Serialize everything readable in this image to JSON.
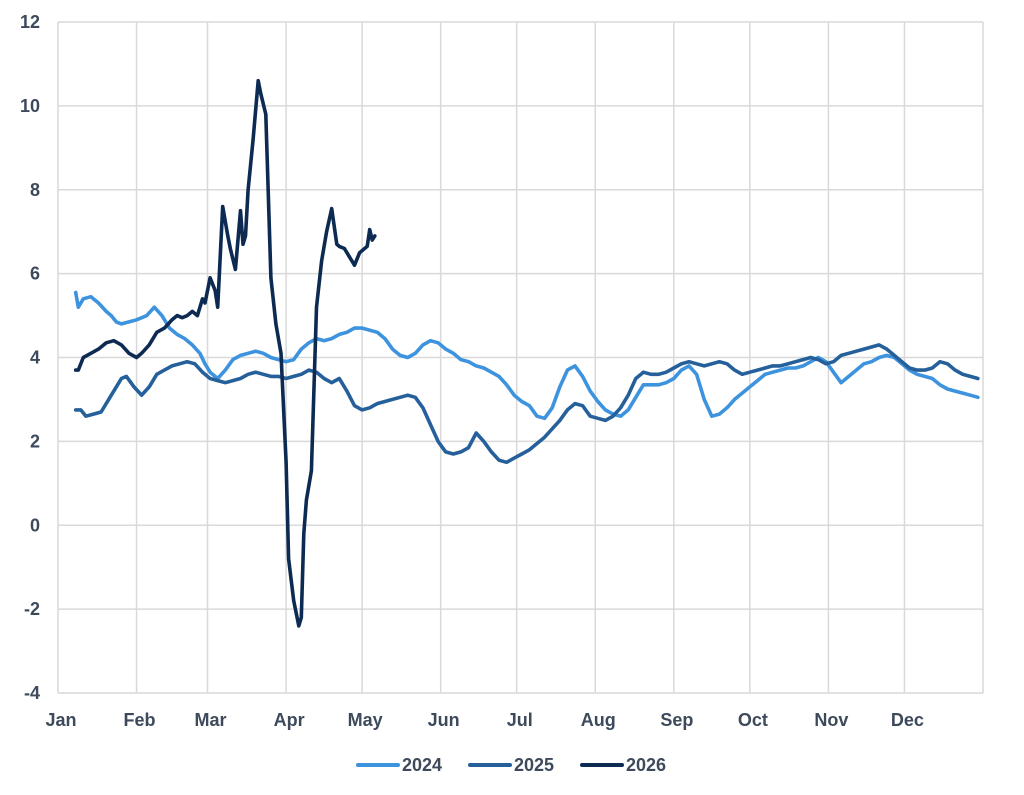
{
  "chart_data": {
    "type": "line",
    "title": "",
    "xlabel": "",
    "ylabel": "",
    "ylim": [
      -4,
      12
    ],
    "yticks": [
      -4,
      -2,
      0,
      2,
      4,
      6,
      8,
      10,
      12
    ],
    "xlim": [
      0,
      365
    ],
    "xtick_labels": [
      "Jan",
      "Feb",
      "Mar",
      "Apr",
      "May",
      "Jun",
      "Jul",
      "Aug",
      "Sep",
      "Oct",
      "Nov",
      "Dec"
    ],
    "xtick_days": [
      0,
      31,
      59,
      90,
      120,
      151,
      181,
      212,
      243,
      273,
      304,
      334
    ],
    "grid": true,
    "legend_position": "bottom-center",
    "series": [
      {
        "name": "2024",
        "color": "#3d93dd",
        "x": [
          7,
          8,
          10,
          13,
          16,
          19,
          21,
          23,
          25,
          28,
          31,
          35,
          38,
          41,
          44,
          47,
          50,
          53,
          56,
          58,
          60,
          63,
          66,
          69,
          72,
          75,
          78,
          81,
          84,
          87,
          90,
          93,
          96,
          99,
          102,
          105,
          108,
          111,
          114,
          117,
          120,
          123,
          126,
          129,
          132,
          135,
          138,
          141,
          144,
          147,
          150,
          153,
          156,
          159,
          162,
          165,
          168,
          171,
          174,
          177,
          180,
          183,
          186,
          189,
          192,
          195,
          198,
          201,
          204,
          207,
          210,
          213,
          216,
          219,
          222,
          225,
          228,
          231,
          234,
          237,
          240,
          243,
          246,
          249,
          252,
          255,
          258,
          261,
          264,
          267,
          270,
          273,
          276,
          279,
          282,
          285,
          288,
          291,
          294,
          297,
          300,
          303,
          306,
          309,
          312,
          315,
          318,
          321,
          324,
          327,
          330,
          333,
          336,
          339,
          342,
          345,
          348,
          351,
          354,
          357,
          360,
          363
        ],
        "y": [
          5.55,
          5.2,
          5.4,
          5.45,
          5.3,
          5.1,
          5.0,
          4.85,
          4.8,
          4.85,
          4.9,
          5.0,
          5.2,
          5.0,
          4.7,
          4.55,
          4.45,
          4.3,
          4.1,
          3.85,
          3.65,
          3.5,
          3.7,
          3.95,
          4.05,
          4.1,
          4.15,
          4.1,
          4.0,
          3.95,
          3.9,
          3.95,
          4.2,
          4.35,
          4.45,
          4.4,
          4.45,
          4.55,
          4.6,
          4.7,
          4.7,
          4.65,
          4.6,
          4.45,
          4.2,
          4.05,
          4.0,
          4.1,
          4.3,
          4.4,
          4.35,
          4.2,
          4.1,
          3.95,
          3.9,
          3.8,
          3.75,
          3.65,
          3.55,
          3.35,
          3.1,
          2.95,
          2.85,
          2.6,
          2.55,
          2.8,
          3.3,
          3.7,
          3.8,
          3.55,
          3.2,
          2.95,
          2.75,
          2.65,
          2.6,
          2.75,
          3.05,
          3.35,
          3.35,
          3.35,
          3.4,
          3.5,
          3.7,
          3.8,
          3.6,
          3.0,
          2.6,
          2.65,
          2.8,
          3.0,
          3.15,
          3.3,
          3.45,
          3.6,
          3.65,
          3.7,
          3.75,
          3.75,
          3.8,
          3.9,
          4.0,
          3.9,
          3.65,
          3.4,
          3.55,
          3.7,
          3.85,
          3.9,
          4.0,
          4.05,
          4.0,
          3.85,
          3.7,
          3.6,
          3.55,
          3.5,
          3.35,
          3.25,
          3.2,
          3.15,
          3.1,
          3.05
        ]
      },
      {
        "name": "2025",
        "color": "#26609a",
        "x": [
          7,
          9,
          11,
          14,
          17,
          20,
          23,
          25,
          27,
          30,
          33,
          36,
          39,
          42,
          45,
          48,
          51,
          54,
          57,
          60,
          63,
          66,
          69,
          72,
          75,
          78,
          81,
          84,
          87,
          90,
          93,
          96,
          99,
          102,
          105,
          108,
          111,
          114,
          117,
          120,
          123,
          126,
          129,
          132,
          135,
          138,
          141,
          144,
          147,
          150,
          153,
          156,
          159,
          162,
          165,
          168,
          171,
          174,
          177,
          180,
          183,
          186,
          189,
          192,
          195,
          198,
          201,
          204,
          207,
          210,
          213,
          216,
          219,
          222,
          225,
          228,
          231,
          234,
          237,
          240,
          243,
          246,
          249,
          252,
          255,
          258,
          261,
          264,
          267,
          270,
          273,
          276,
          279,
          282,
          285,
          288,
          291,
          294,
          297,
          300,
          303,
          306,
          309,
          312,
          315,
          318,
          321,
          324,
          327,
          330,
          333,
          336,
          339,
          342,
          345,
          348,
          351,
          354,
          357,
          360,
          363
        ],
        "y": [
          2.75,
          2.75,
          2.6,
          2.65,
          2.7,
          3.0,
          3.3,
          3.5,
          3.55,
          3.3,
          3.1,
          3.3,
          3.6,
          3.7,
          3.8,
          3.85,
          3.9,
          3.85,
          3.65,
          3.5,
          3.45,
          3.4,
          3.45,
          3.5,
          3.6,
          3.65,
          3.6,
          3.55,
          3.55,
          3.5,
          3.55,
          3.6,
          3.7,
          3.65,
          3.5,
          3.4,
          3.5,
          3.2,
          2.85,
          2.75,
          2.8,
          2.9,
          2.95,
          3.0,
          3.05,
          3.1,
          3.05,
          2.8,
          2.4,
          2.0,
          1.75,
          1.7,
          1.75,
          1.85,
          2.2,
          2.0,
          1.75,
          1.55,
          1.5,
          1.6,
          1.7,
          1.8,
          1.95,
          2.1,
          2.3,
          2.5,
          2.75,
          2.9,
          2.85,
          2.6,
          2.55,
          2.5,
          2.6,
          2.8,
          3.1,
          3.5,
          3.65,
          3.6,
          3.6,
          3.65,
          3.75,
          3.85,
          3.9,
          3.85,
          3.8,
          3.85,
          3.9,
          3.85,
          3.7,
          3.6,
          3.65,
          3.7,
          3.75,
          3.8,
          3.8,
          3.85,
          3.9,
          3.95,
          4.0,
          3.95,
          3.85,
          3.9,
          4.05,
          4.1,
          4.15,
          4.2,
          4.25,
          4.3,
          4.2,
          4.05,
          3.9,
          3.75,
          3.7,
          3.7,
          3.75,
          3.9,
          3.85,
          3.7,
          3.6,
          3.55,
          3.5
        ]
      },
      {
        "name": "2026",
        "color": "#0d2b52",
        "x": [
          7,
          8,
          10,
          13,
          16,
          19,
          22,
          25,
          28,
          31,
          33,
          36,
          39,
          42,
          45,
          47,
          49,
          51,
          53,
          55,
          57,
          58,
          60,
          62,
          63,
          65,
          67,
          68,
          70,
          72,
          73,
          74,
          75,
          77,
          79,
          80,
          82,
          84,
          86,
          88,
          90,
          91,
          93,
          95,
          96,
          97,
          98,
          100,
          102,
          104,
          106,
          108,
          110,
          111,
          113,
          115,
          117,
          119,
          120,
          121,
          122,
          123,
          124,
          125
        ],
        "y": [
          3.7,
          3.7,
          4.0,
          4.1,
          4.2,
          4.35,
          4.4,
          4.3,
          4.1,
          4.0,
          4.1,
          4.3,
          4.6,
          4.7,
          4.9,
          5.0,
          4.95,
          5.0,
          5.1,
          5.0,
          5.4,
          5.3,
          5.9,
          5.6,
          5.2,
          7.6,
          6.9,
          6.6,
          6.1,
          7.5,
          6.7,
          6.9,
          8.0,
          9.2,
          10.6,
          10.3,
          9.8,
          5.9,
          4.8,
          4.1,
          1.5,
          -0.8,
          -1.8,
          -2.4,
          -2.2,
          -0.2,
          0.6,
          1.3,
          5.2,
          6.3,
          7.0,
          7.55,
          6.7,
          6.65,
          6.6,
          6.4,
          6.2,
          6.5,
          6.55,
          6.6,
          6.65,
          7.05,
          6.8,
          6.9
        ]
      }
    ]
  }
}
